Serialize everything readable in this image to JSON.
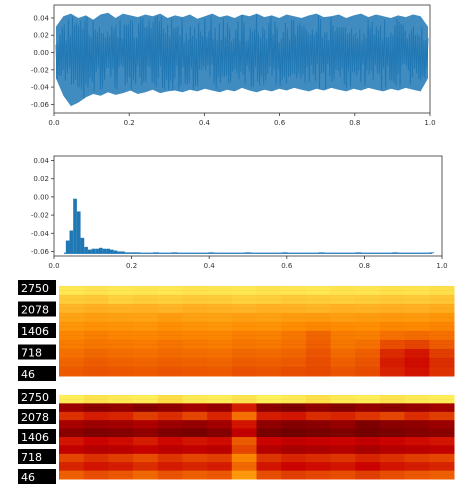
{
  "chart_data": [
    {
      "type": "line",
      "title": "",
      "xlabel": "",
      "ylabel": "",
      "xlim": [
        0.0,
        1.0
      ],
      "ylim": [
        -0.07,
        0.055
      ],
      "xticks": [
        "0.0",
        "0.2",
        "0.4",
        "0.6",
        "0.8",
        "1.0"
      ],
      "yticks": [
        "0.04",
        "0.02",
        "0.00",
        "-0.02",
        "-0.04",
        "-0.06"
      ],
      "series": [
        {
          "color": "#1f77b4",
          "x": [
            0.0,
            0.02,
            0.04,
            0.06,
            0.08,
            0.1,
            0.12,
            0.14,
            0.16,
            0.18,
            0.2,
            0.22,
            0.24,
            0.26,
            0.28,
            0.3,
            0.32,
            0.34,
            0.36,
            0.38,
            0.4,
            0.42,
            0.44,
            0.46,
            0.48,
            0.5,
            0.52,
            0.54,
            0.56,
            0.58,
            0.6,
            0.62,
            0.64,
            0.66,
            0.68,
            0.7,
            0.72,
            0.74,
            0.76,
            0.78,
            0.8,
            0.82,
            0.84,
            0.86,
            0.88,
            0.9,
            0.92,
            0.94,
            0.96,
            0.98,
            1.0
          ],
          "upper": [
            0.03,
            0.042,
            0.045,
            0.04,
            0.043,
            0.038,
            0.044,
            0.046,
            0.04,
            0.045,
            0.043,
            0.041,
            0.044,
            0.042,
            0.045,
            0.04,
            0.043,
            0.041,
            0.044,
            0.039,
            0.042,
            0.045,
            0.041,
            0.043,
            0.04,
            0.044,
            0.042,
            0.045,
            0.041,
            0.043,
            0.04,
            0.044,
            0.042,
            0.04,
            0.043,
            0.045,
            0.041,
            0.042,
            0.044,
            0.04,
            0.043,
            0.045,
            0.041,
            0.044,
            0.042,
            0.04,
            0.043,
            0.041,
            0.044,
            0.042,
            0.03
          ],
          "lower": [
            -0.03,
            -0.05,
            -0.062,
            -0.058,
            -0.052,
            -0.048,
            -0.05,
            -0.046,
            -0.049,
            -0.047,
            -0.044,
            -0.048,
            -0.046,
            -0.043,
            -0.047,
            -0.045,
            -0.044,
            -0.046,
            -0.043,
            -0.045,
            -0.042,
            -0.044,
            -0.046,
            -0.043,
            -0.045,
            -0.041,
            -0.044,
            -0.046,
            -0.043,
            -0.045,
            -0.042,
            -0.044,
            -0.041,
            -0.043,
            -0.045,
            -0.042,
            -0.044,
            -0.041,
            -0.043,
            -0.045,
            -0.042,
            -0.044,
            -0.041,
            -0.043,
            -0.045,
            -0.042,
            -0.044,
            -0.041,
            -0.043,
            -0.045,
            -0.03
          ]
        }
      ]
    },
    {
      "type": "bar",
      "title": "",
      "xlabel": "",
      "ylabel": "",
      "xlim": [
        0.0,
        1.0
      ],
      "ylim": [
        -0.065,
        0.045
      ],
      "baseline": -0.062,
      "xticks": [
        "0.0",
        "0.2",
        "0.4",
        "0.6",
        "0.8",
        "1.0"
      ],
      "yticks": [
        "0.04",
        "0.02",
        "0.00",
        "-0.02",
        "-0.04",
        "-0.06"
      ],
      "color": "#1f77b4",
      "x": [
        0.01,
        0.02,
        0.03,
        0.04,
        0.05,
        0.06,
        0.07,
        0.08,
        0.09,
        0.1,
        0.11,
        0.12,
        0.13,
        0.14,
        0.15,
        0.16,
        0.17,
        0.18,
        0.19,
        0.2,
        0.25,
        0.3,
        0.4,
        0.5,
        0.6,
        0.7,
        0.8,
        0.9,
        1.0
      ],
      "values": [
        -0.048,
        -0.037,
        -0.002,
        -0.016,
        -0.045,
        -0.055,
        -0.058,
        -0.057,
        -0.057,
        -0.056,
        -0.057,
        -0.057,
        -0.058,
        -0.059,
        -0.06,
        -0.06,
        -0.061,
        -0.061,
        -0.061,
        -0.061,
        -0.061,
        -0.061,
        -0.061,
        -0.061,
        -0.061,
        -0.061,
        -0.061,
        -0.061,
        -0.061
      ]
    },
    {
      "type": "heatmap",
      "title": "",
      "colormap": [
        "#ffff66",
        "#ff8c00",
        "#cc0000"
      ],
      "ytick_labels": [
        "2750",
        "2078",
        "1406",
        "718",
        "46"
      ],
      "rows_top_to_bottom": [
        [
          0.1,
          0.12,
          0.1,
          0.11,
          0.1,
          0.12,
          0.11,
          0.1,
          0.12,
          0.11,
          0.1,
          0.12,
          0.11,
          0.13,
          0.12,
          0.14
        ],
        [
          0.22,
          0.24,
          0.2,
          0.22,
          0.21,
          0.23,
          0.22,
          0.2,
          0.21,
          0.23,
          0.22,
          0.21,
          0.22,
          0.24,
          0.23,
          0.25
        ],
        [
          0.32,
          0.35,
          0.33,
          0.34,
          0.32,
          0.35,
          0.33,
          0.32,
          0.34,
          0.33,
          0.32,
          0.34,
          0.33,
          0.35,
          0.34,
          0.36
        ],
        [
          0.4,
          0.42,
          0.41,
          0.4,
          0.43,
          0.41,
          0.4,
          0.42,
          0.41,
          0.43,
          0.44,
          0.42,
          0.43,
          0.45,
          0.44,
          0.46
        ],
        [
          0.46,
          0.48,
          0.47,
          0.46,
          0.49,
          0.47,
          0.46,
          0.48,
          0.47,
          0.5,
          0.52,
          0.5,
          0.49,
          0.52,
          0.51,
          0.53
        ],
        [
          0.52,
          0.55,
          0.53,
          0.52,
          0.54,
          0.53,
          0.52,
          0.55,
          0.54,
          0.58,
          0.64,
          0.56,
          0.55,
          0.6,
          0.62,
          0.6
        ],
        [
          0.56,
          0.58,
          0.57,
          0.56,
          0.59,
          0.57,
          0.56,
          0.58,
          0.57,
          0.6,
          0.66,
          0.58,
          0.6,
          0.72,
          0.76,
          0.68
        ],
        [
          0.6,
          0.63,
          0.61,
          0.6,
          0.62,
          0.61,
          0.6,
          0.63,
          0.62,
          0.64,
          0.7,
          0.62,
          0.66,
          0.85,
          0.92,
          0.78
        ],
        [
          0.64,
          0.67,
          0.65,
          0.64,
          0.66,
          0.65,
          0.64,
          0.67,
          0.66,
          0.68,
          0.72,
          0.66,
          0.7,
          0.9,
          0.96,
          0.84
        ],
        [
          0.68,
          0.7,
          0.69,
          0.68,
          0.7,
          0.69,
          0.68,
          0.71,
          0.7,
          0.72,
          0.74,
          0.7,
          0.73,
          0.88,
          0.94,
          0.82
        ]
      ]
    },
    {
      "type": "heatmap",
      "title": "",
      "colormap": [
        "#ffff66",
        "#ff8c00",
        "#cc0000",
        "#660000"
      ],
      "ytick_labels": [
        "2750",
        "2078",
        "1406",
        "718",
        "46"
      ],
      "rows_top_to_bottom": [
        [
          0.05,
          0.08,
          0.06,
          0.05,
          0.1,
          0.06,
          0.05,
          0.08,
          0.04,
          0.06,
          0.09,
          0.06,
          0.05,
          0.08,
          0.06,
          0.05
        ],
        [
          0.82,
          0.88,
          0.85,
          0.9,
          0.86,
          0.8,
          0.84,
          0.6,
          0.88,
          0.92,
          0.86,
          0.9,
          0.85,
          0.88,
          0.84,
          0.8
        ],
        [
          0.55,
          0.6,
          0.58,
          0.52,
          0.56,
          0.5,
          0.58,
          0.4,
          0.6,
          0.62,
          0.56,
          0.58,
          0.54,
          0.5,
          0.56,
          0.52
        ],
        [
          0.78,
          0.82,
          0.8,
          0.76,
          0.82,
          0.84,
          0.8,
          0.62,
          0.86,
          0.9,
          0.88,
          0.84,
          0.92,
          0.88,
          0.86,
          0.82
        ],
        [
          0.88,
          0.92,
          0.9,
          0.86,
          0.92,
          0.94,
          0.9,
          0.7,
          0.94,
          0.96,
          0.94,
          0.92,
          0.95,
          0.93,
          0.9,
          0.88
        ],
        [
          0.62,
          0.66,
          0.64,
          0.6,
          0.65,
          0.62,
          0.64,
          0.45,
          0.66,
          0.7,
          0.68,
          0.66,
          0.7,
          0.66,
          0.64,
          0.62
        ],
        [
          0.7,
          0.74,
          0.72,
          0.68,
          0.72,
          0.7,
          0.72,
          0.5,
          0.74,
          0.78,
          0.76,
          0.74,
          0.78,
          0.74,
          0.72,
          0.7
        ],
        [
          0.5,
          0.55,
          0.52,
          0.48,
          0.54,
          0.5,
          0.52,
          0.35,
          0.54,
          0.58,
          0.56,
          0.54,
          0.58,
          0.55,
          0.52,
          0.5
        ],
        [
          0.58,
          0.62,
          0.6,
          0.56,
          0.6,
          0.58,
          0.6,
          0.42,
          0.62,
          0.66,
          0.64,
          0.62,
          0.66,
          0.62,
          0.6,
          0.58
        ],
        [
          0.44,
          0.48,
          0.46,
          0.42,
          0.47,
          0.44,
          0.46,
          0.3,
          0.48,
          0.52,
          0.5,
          0.48,
          0.52,
          0.48,
          0.46,
          0.44
        ]
      ]
    }
  ]
}
